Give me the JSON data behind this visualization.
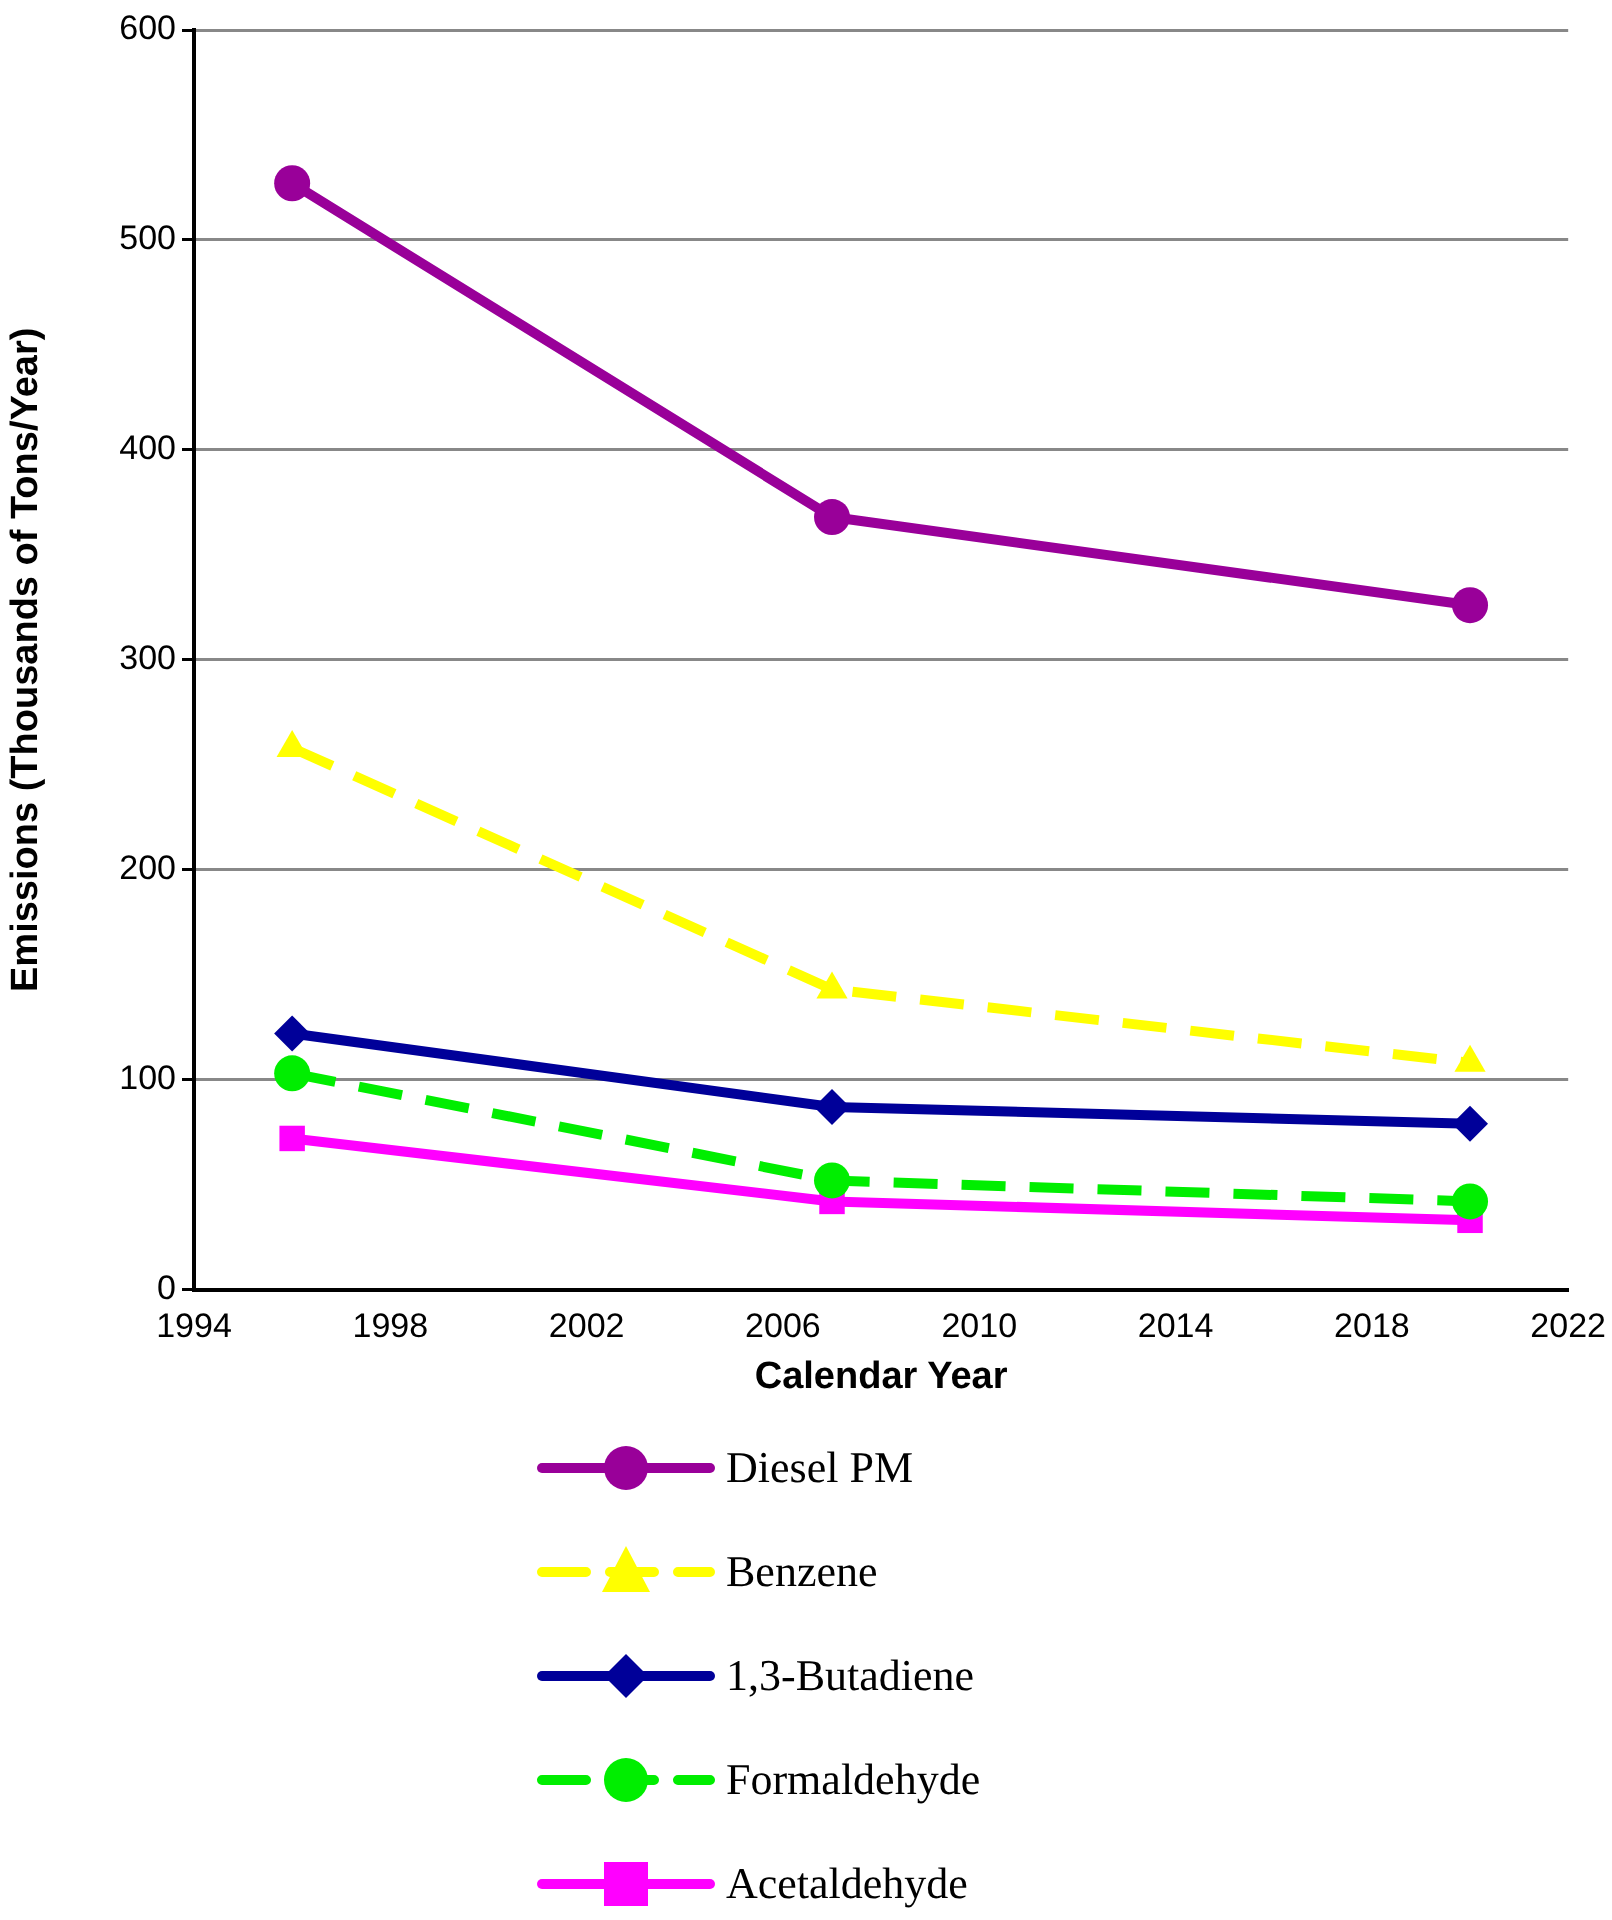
{
  "chart_data": {
    "type": "line",
    "xlabel": "Calendar Year",
    "ylabel": "Emissions (Thousands of Tons/Year)",
    "x": [
      1996,
      2007,
      2020
    ],
    "xlim": [
      1994,
      2022
    ],
    "xticks": [
      1994,
      1998,
      2002,
      2006,
      2010,
      2014,
      2018,
      2022
    ],
    "ylim": [
      0,
      600
    ],
    "yticks": [
      0,
      100,
      200,
      300,
      400,
      500,
      600
    ],
    "grid": "y",
    "legend": "bottom",
    "series": [
      {
        "name": "Diesel PM",
        "color": "#990099",
        "values": [
          527,
          368,
          326
        ],
        "marker": "circle",
        "line_style": "solid"
      },
      {
        "name": "Benzene",
        "color": "#ffff00",
        "values": [
          258,
          143,
          108
        ],
        "marker": "triangle",
        "line_style": "dashed"
      },
      {
        "name": "1,3-Butadiene",
        "color": "#000099",
        "values": [
          122,
          87,
          79
        ],
        "marker": "diamond",
        "line_style": "solid"
      },
      {
        "name": "Formaldehyde",
        "color": "#00ee00",
        "values": [
          103,
          52,
          42
        ],
        "marker": "circle",
        "line_style": "dashed"
      },
      {
        "name": "Acetaldehyde",
        "color": "#ff00ff",
        "values": [
          72,
          42,
          33
        ],
        "marker": "square",
        "line_style": "solid"
      }
    ]
  }
}
